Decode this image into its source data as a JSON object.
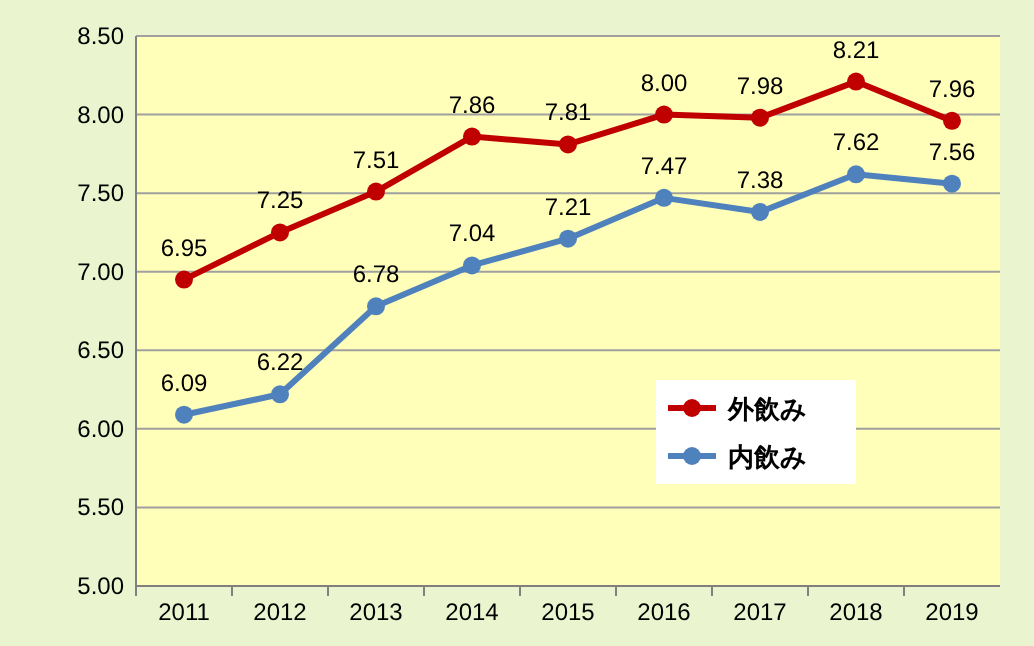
{
  "chart_data": {
    "type": "line",
    "categories": [
      "2011",
      "2012",
      "2013",
      "2014",
      "2015",
      "2016",
      "2017",
      "2018",
      "2019"
    ],
    "series": [
      {
        "name": "外飲み",
        "color": "#c00000",
        "values": [
          6.95,
          7.25,
          7.51,
          7.86,
          7.81,
          8.0,
          7.98,
          8.21,
          7.96
        ],
        "value_labels": [
          "6.95",
          "7.25",
          "7.51",
          "7.86",
          "7.81",
          "8.00",
          "7.98",
          "8.21",
          "7.96"
        ]
      },
      {
        "name": "内飲み",
        "color": "#4f81bd",
        "values": [
          6.09,
          6.22,
          6.78,
          7.04,
          7.21,
          7.47,
          7.38,
          7.62,
          7.56
        ],
        "value_labels": [
          "6.09",
          "6.22",
          "6.78",
          "7.04",
          "7.21",
          "7.47",
          "7.38",
          "7.62",
          "7.56"
        ]
      }
    ],
    "ylim": [
      5,
      8.5
    ],
    "yticks": [
      {
        "value": 5,
        "label": "5.00"
      },
      {
        "value": 5.5,
        "label": "5.50"
      },
      {
        "value": 6,
        "label": "6.00"
      },
      {
        "value": 6.5,
        "label": "6.50"
      },
      {
        "value": 7,
        "label": "7.00"
      },
      {
        "value": 7.5,
        "label": "7.50"
      },
      {
        "value": 8,
        "label": "8.00"
      },
      {
        "value": 8.5,
        "label": "8.50"
      }
    ],
    "grid": "y",
    "legend": "bottom right",
    "marker": "circle",
    "line_style": "solid"
  }
}
